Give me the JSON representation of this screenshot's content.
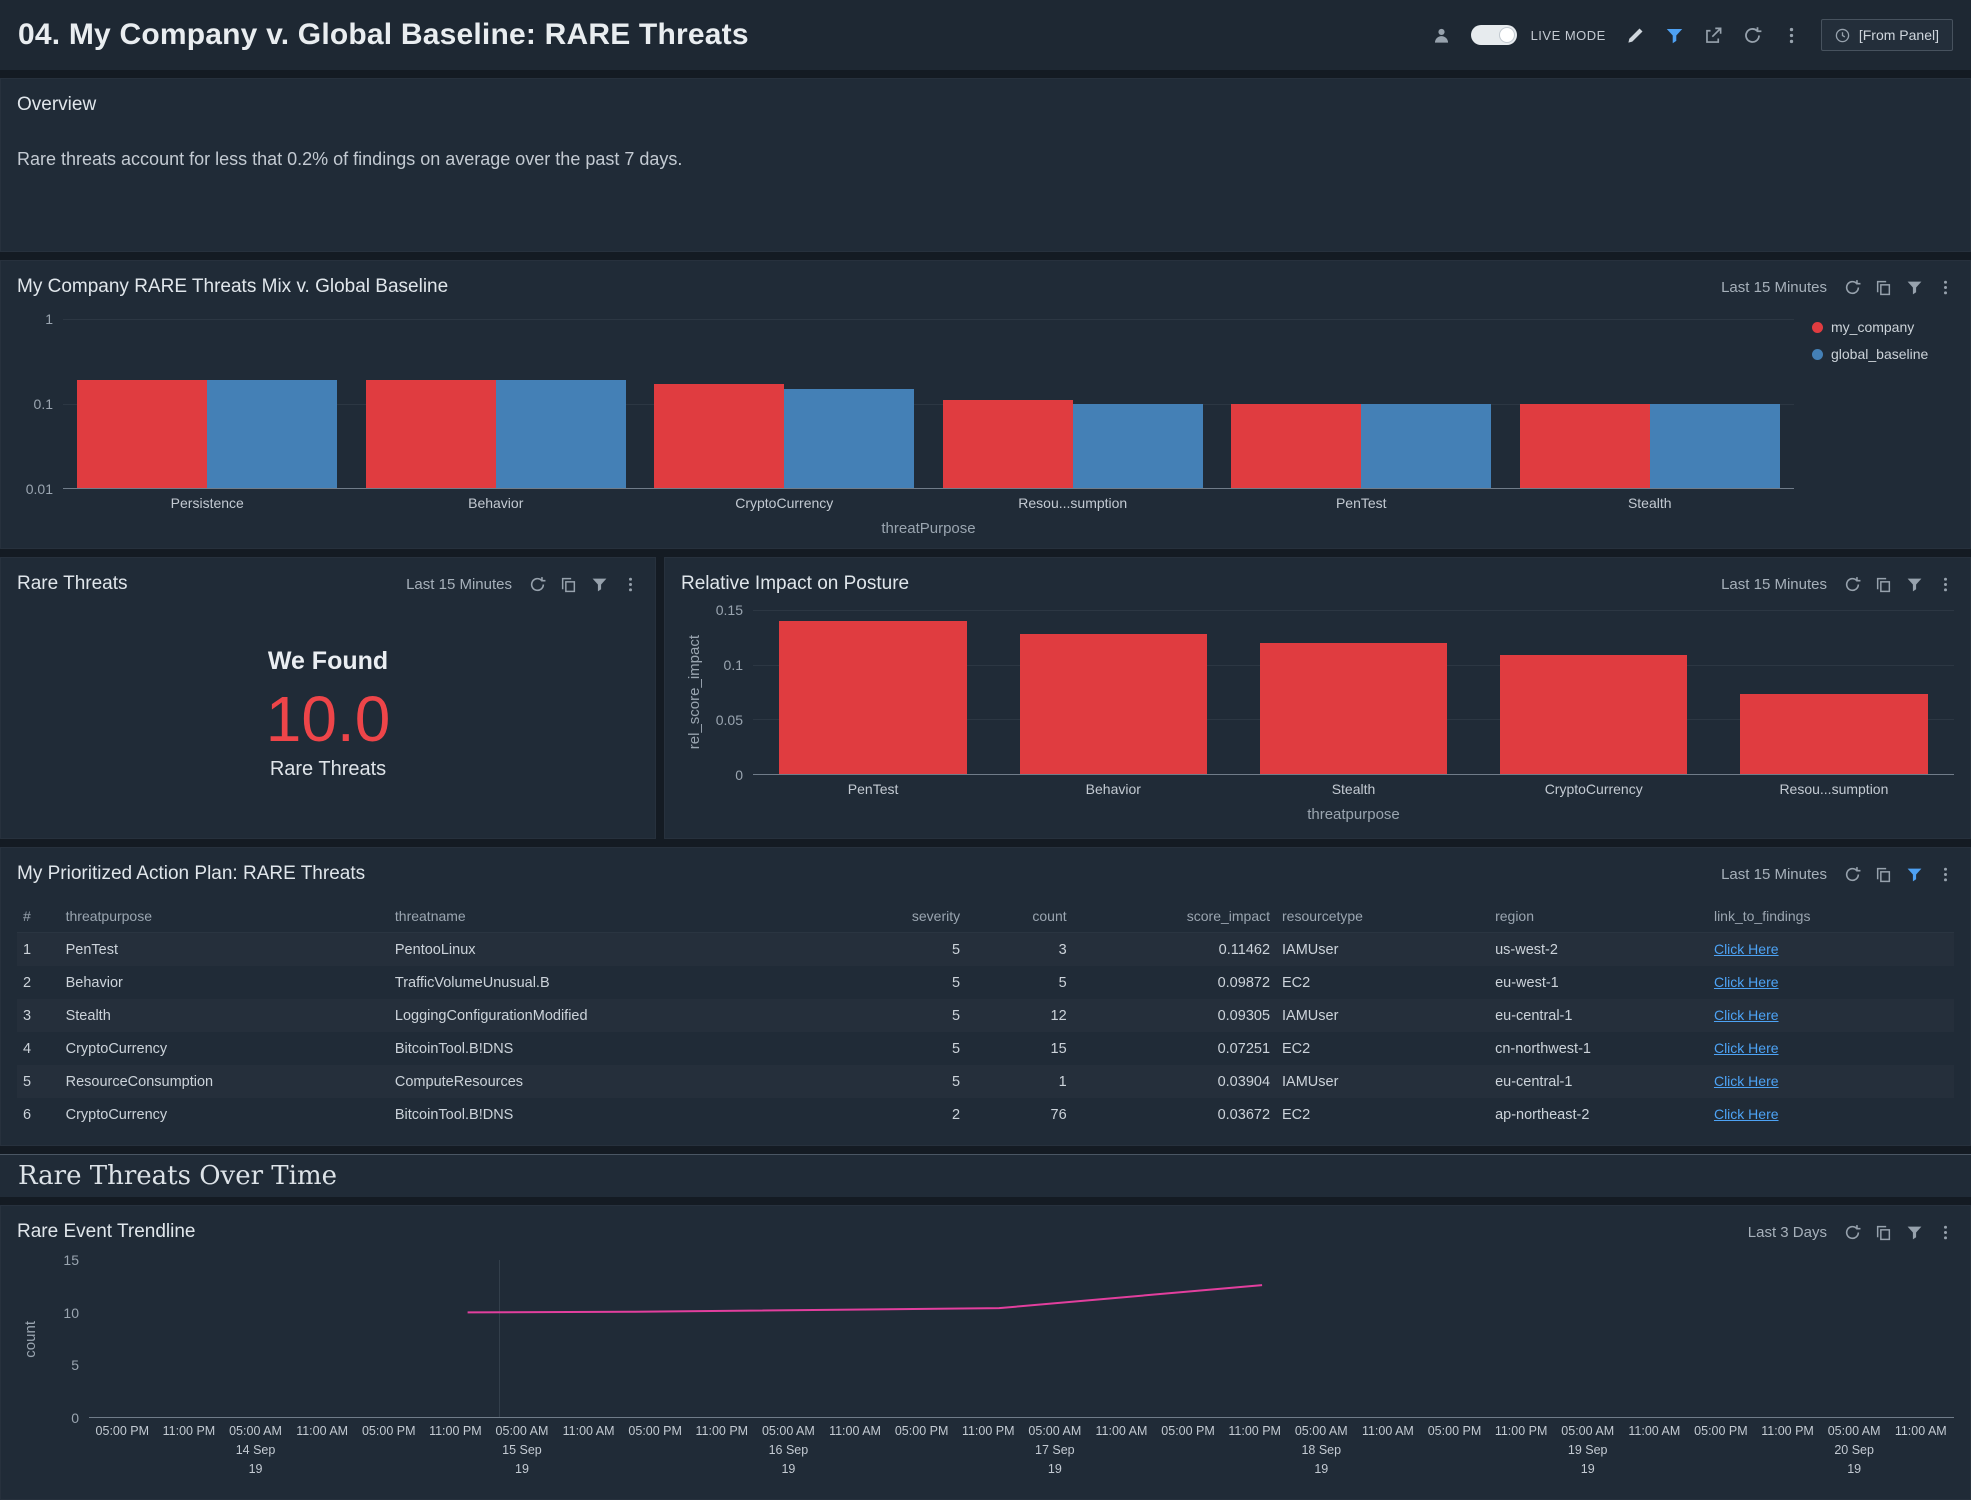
{
  "header": {
    "title": "04. My Company v. Global Baseline: RARE Threats",
    "live_mode_label": "LIVE MODE",
    "time_range_button": "[From Panel]"
  },
  "overview": {
    "title": "Overview",
    "body": "Rare threats account for less that 0.2% of findings on average over the past 7 days."
  },
  "panels": {
    "mix": {
      "title": "My Company RARE Threats Mix v. Global Baseline",
      "time_range": "Last 15 Minutes"
    },
    "rare": {
      "title": "Rare Threats",
      "time_range": "Last 15 Minutes",
      "we_found": "We Found",
      "value": "10.0",
      "caption": "Rare Threats"
    },
    "impact": {
      "title": "Relative Impact on Posture",
      "time_range": "Last 15 Minutes"
    },
    "action_plan": {
      "title": "My Prioritized Action Plan: RARE Threats",
      "time_range": "Last 15 Minutes"
    },
    "section_title": "Rare Threats Over Time",
    "trendline": {
      "title": "Rare Event Trendline",
      "time_range": "Last 3 Days"
    }
  },
  "table": {
    "columns": [
      "#",
      "threatpurpose",
      "threatname",
      "severity",
      "count",
      "score_impact",
      "resourcetype",
      "region",
      "link_to_findings"
    ],
    "rows": [
      [
        "1",
        "PenTest",
        "PentooLinux",
        "5",
        "3",
        "0.11462",
        "IAMUser",
        "us-west-2",
        "Click Here"
      ],
      [
        "2",
        "Behavior",
        "TrafficVolumeUnusual.B",
        "5",
        "5",
        "0.09872",
        "EC2",
        "eu-west-1",
        "Click Here"
      ],
      [
        "3",
        "Stealth",
        "LoggingConfigurationModified",
        "5",
        "12",
        "0.09305",
        "IAMUser",
        "eu-central-1",
        "Click Here"
      ],
      [
        "4",
        "CryptoCurrency",
        "BitcoinTool.B!DNS",
        "5",
        "15",
        "0.07251",
        "EC2",
        "cn-northwest-1",
        "Click Here"
      ],
      [
        "5",
        "ResourceConsumption",
        "ComputeResources",
        "5",
        "1",
        "0.03904",
        "IAMUser",
        "eu-central-1",
        "Click Here"
      ],
      [
        "6",
        "CryptoCurrency",
        "BitcoinTool.B!DNS",
        "2",
        "76",
        "0.03672",
        "EC2",
        "ap-northeast-2",
        "Click Here"
      ]
    ]
  },
  "colors": {
    "my_company_red": "#e03c40",
    "global_baseline_blue": "#4480b6",
    "big_number_red": "#ee4549",
    "trendline_magenta": "#e23f9e",
    "link_blue": "#4da3f5",
    "filter_active_blue": "#4ea1f3"
  },
  "chart_data": [
    {
      "type": "bar",
      "title": "My Company RARE Threats Mix v. Global Baseline",
      "categories": [
        "Persistence",
        "Behavior",
        "CryptoCurrency",
        "Resou...sumption",
        "PenTest",
        "Stealth"
      ],
      "series": [
        {
          "name": "my_company",
          "color": "#e03c40",
          "values": [
            0.19,
            0.19,
            0.17,
            0.11,
            0.1,
            0.1
          ]
        },
        {
          "name": "global_baseline",
          "color": "#4480b6",
          "values": [
            0.19,
            0.19,
            0.15,
            0.1,
            0.1,
            0.1
          ]
        }
      ],
      "xlabel": "threatPurpose",
      "y_scale": "log",
      "y_ticks": [
        "1",
        "0.1",
        "0.01"
      ],
      "ylim": [
        0.01,
        1
      ],
      "legend_position": "right",
      "grid": true
    },
    {
      "type": "bar",
      "title": "Relative Impact on Posture",
      "categories": [
        "PenTest",
        "Behavior",
        "Stealth",
        "CryptoCurrency",
        "Resou...sumption"
      ],
      "values": [
        0.14,
        0.128,
        0.12,
        0.109,
        0.073
      ],
      "color": "#e03c40",
      "xlabel": "threatpurpose",
      "ylabel": "rel_score_impact",
      "y_ticks": [
        "0.15",
        "0.1",
        "0.05",
        "0"
      ],
      "ylim": [
        0,
        0.15
      ],
      "grid": true
    },
    {
      "type": "line",
      "title": "Rare Event Trendline",
      "ylabel": "count",
      "y_ticks": [
        "15",
        "10",
        "5",
        "0"
      ],
      "ylim": [
        0,
        15
      ],
      "color": "#e23f9e",
      "points": [
        {
          "x": 0.203,
          "y": 10,
          "time": "14 Sep 11:00 PM",
          "count": 10
        },
        {
          "x": 0.29,
          "y": 10.05,
          "time": "15 Sep 12:00 PM",
          "count": 10
        },
        {
          "x": 0.488,
          "y": 10.4,
          "time": "17 Sep 12:00 AM",
          "count": 10.4
        },
        {
          "x": 0.629,
          "y": 12.6,
          "time": "18 Sep 06:00 AM",
          "count": 12.6
        }
      ],
      "x_ticks": [
        [
          "05:00 PM"
        ],
        [
          "11:00 PM"
        ],
        [
          "05:00 AM",
          "14 Sep",
          "19"
        ],
        [
          "11:00 AM"
        ],
        [
          "05:00 PM"
        ],
        [
          "11:00 PM"
        ],
        [
          "05:00 AM",
          "15 Sep",
          "19"
        ],
        [
          "11:00 AM"
        ],
        [
          "05:00 PM"
        ],
        [
          "11:00 PM"
        ],
        [
          "05:00 AM",
          "16 Sep",
          "19"
        ],
        [
          "11:00 AM"
        ],
        [
          "05:00 PM"
        ],
        [
          "11:00 PM"
        ],
        [
          "05:00 AM",
          "17 Sep",
          "19"
        ],
        [
          "11:00 AM"
        ],
        [
          "05:00 PM"
        ],
        [
          "11:00 PM"
        ],
        [
          "05:00 AM",
          "18 Sep",
          "19"
        ],
        [
          "11:00 AM"
        ],
        [
          "05:00 PM"
        ],
        [
          "11:00 PM"
        ],
        [
          "05:00 AM",
          "19 Sep",
          "19"
        ],
        [
          "11:00 AM"
        ],
        [
          "05:00 PM"
        ],
        [
          "11:00 PM"
        ],
        [
          "05:00 AM",
          "20 Sep",
          "19"
        ],
        [
          "11:00 AM"
        ]
      ]
    }
  ]
}
